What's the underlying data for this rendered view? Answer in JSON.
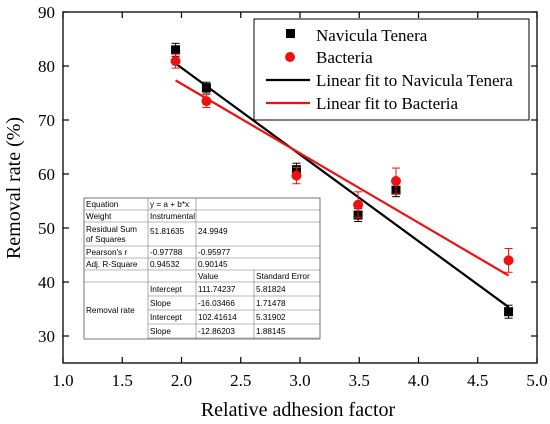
{
  "chart_data": {
    "type": "scatter",
    "xlabel": "Relative adhesion factor",
    "ylabel": "Removal rate (%)",
    "xlim": [
      1.0,
      5.0
    ],
    "ylim": [
      25,
      90
    ],
    "xticks": [
      1.0,
      1.5,
      2.0,
      2.5,
      3.0,
      3.5,
      4.0,
      4.5,
      5.0
    ],
    "yticks": [
      30,
      40,
      50,
      60,
      70,
      80,
      90
    ],
    "xtick_labels": [
      "1.0",
      "1.5",
      "2.0",
      "2.5",
      "3.0",
      "3.5",
      "4.0",
      "4.5",
      "5.0"
    ],
    "ytick_labels": [
      "30",
      "40",
      "50",
      "60",
      "70",
      "80",
      "90"
    ],
    "legend_position": "top-right",
    "series": [
      {
        "name": "Navicula Tenera",
        "kind": "points",
        "marker": "square",
        "color": "#000000",
        "points": [
          {
            "x": 1.95,
            "y": 83.0,
            "err": 1.2
          },
          {
            "x": 2.21,
            "y": 76.0,
            "err": 1.0
          },
          {
            "x": 2.97,
            "y": 60.8,
            "err": 1.2
          },
          {
            "x": 3.49,
            "y": 52.4,
            "err": 1.2
          },
          {
            "x": 3.81,
            "y": 57.0,
            "err": 1.2
          },
          {
            "x": 4.76,
            "y": 34.5,
            "err": 1.2
          }
        ]
      },
      {
        "name": "Bacteria",
        "kind": "points",
        "marker": "circle",
        "color": "#ee1111",
        "points": [
          {
            "x": 1.95,
            "y": 80.9,
            "err": 1.3
          },
          {
            "x": 2.21,
            "y": 73.5,
            "err": 1.2
          },
          {
            "x": 2.97,
            "y": 59.7,
            "err": 1.5
          },
          {
            "x": 3.49,
            "y": 54.3,
            "err": 2.4
          },
          {
            "x": 3.81,
            "y": 58.7,
            "err": 2.4
          },
          {
            "x": 4.76,
            "y": 44.0,
            "err": 2.2
          }
        ]
      },
      {
        "name": "Linear fit to Navicula Tenera",
        "kind": "line",
        "color": "#000000",
        "x": [
          1.95,
          4.76
        ],
        "y": [
          80.46,
          35.36
        ]
      },
      {
        "name": "Linear fit to Bacteria",
        "kind": "line",
        "color": "#ee1111",
        "x": [
          1.95,
          4.76
        ],
        "y": [
          77.34,
          41.2
        ]
      }
    ],
    "fit_table": {
      "rows": [
        [
          "Equation",
          "y = a + b*x",
          ""
        ],
        [
          "Weight",
          "Instrumental",
          ""
        ],
        [
          "Residual Sum of Squares",
          "51.81635",
          "24.9949"
        ],
        [
          "Pearson's r",
          "-0.97788",
          "-0.95977"
        ],
        [
          "Adj. R-Square",
          "0.94532",
          "0.90145"
        ]
      ],
      "param_header": [
        "",
        "Value",
        "Standard Error"
      ],
      "param_rows": [
        [
          "Intercept",
          "111.74237",
          "5.81824"
        ],
        [
          "Slope",
          "-16.03466",
          "1.71478"
        ],
        [
          "Intercept",
          "102.41614",
          "5.31902"
        ],
        [
          "Slope",
          "-12.86203",
          "1.88145"
        ]
      ],
      "param_group_label": "Removal rate"
    }
  }
}
